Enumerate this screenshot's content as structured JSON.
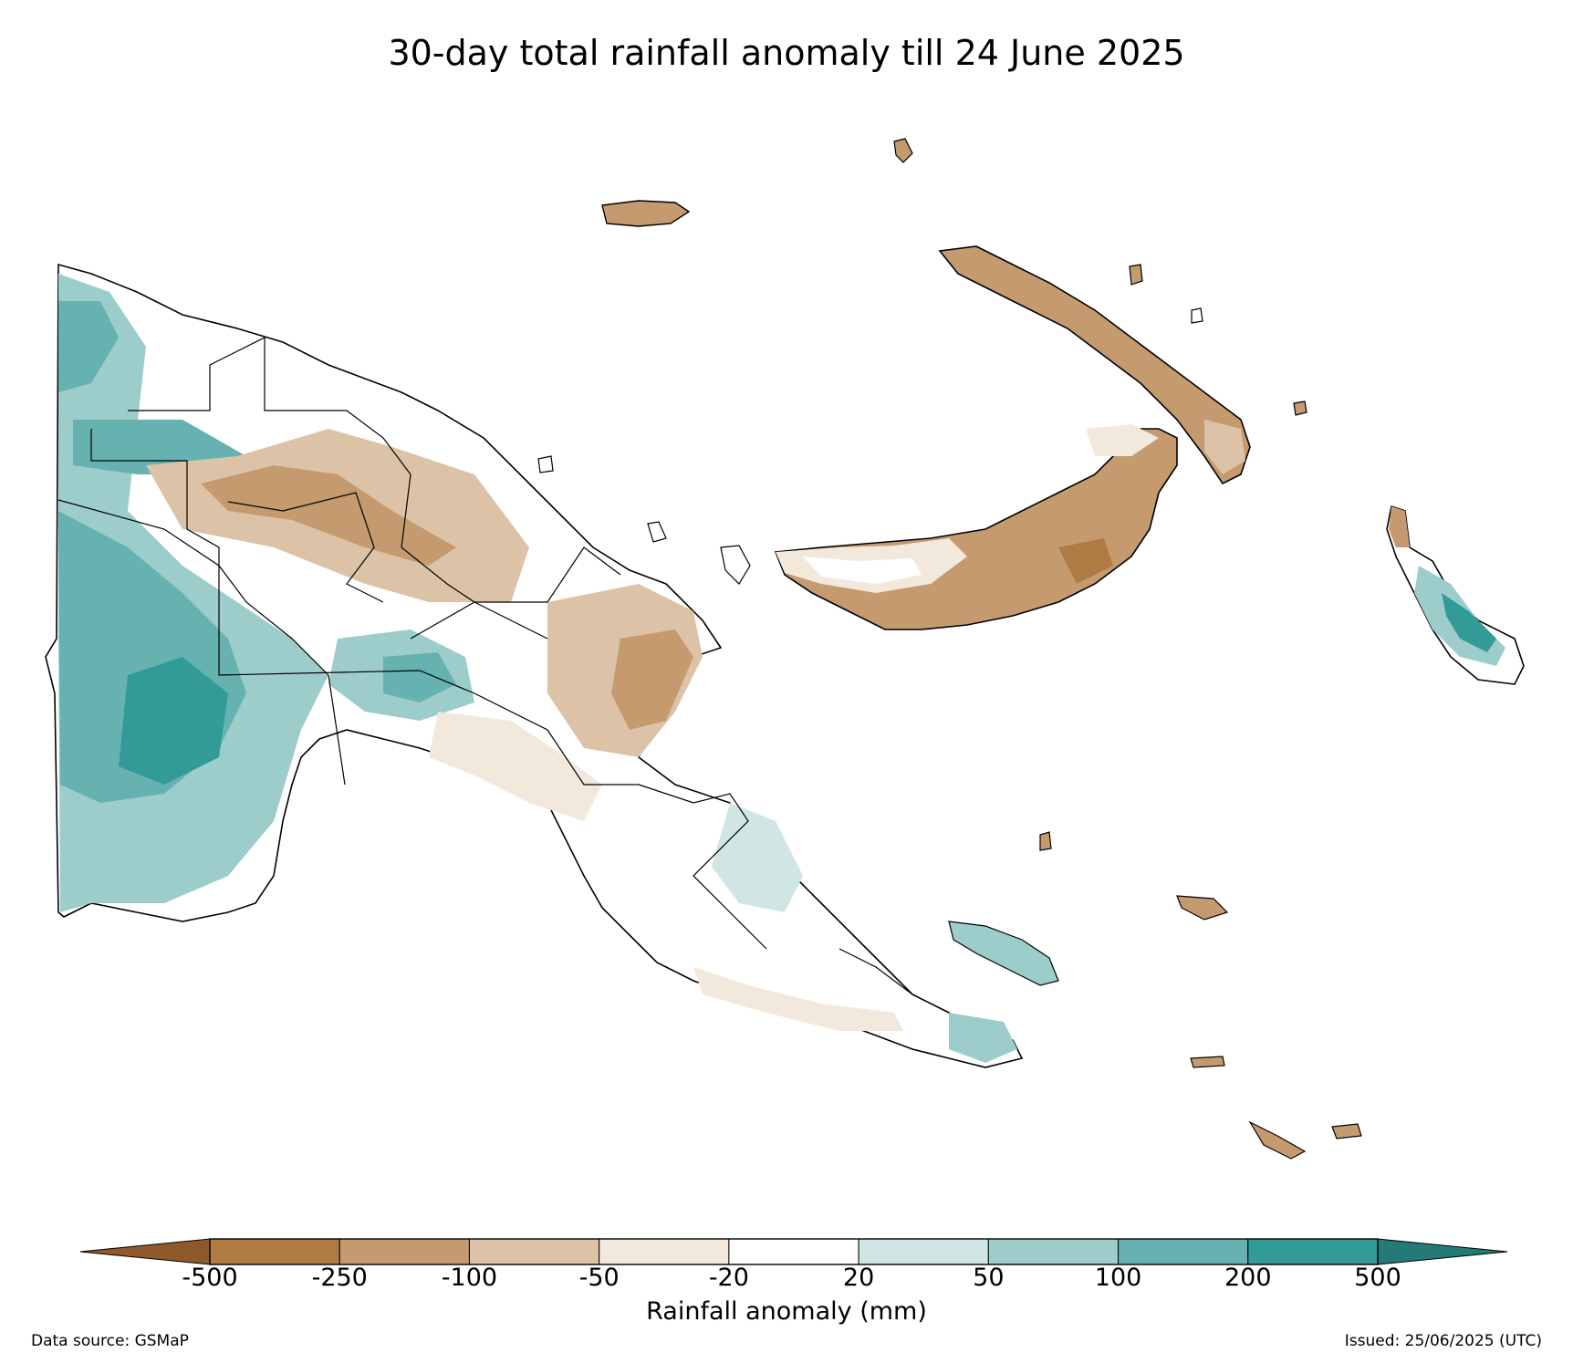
{
  "title": "30-day total rainfall anomaly till 24 June 2025",
  "colorbar": {
    "label": "Rainfall anomaly (mm)",
    "ticks": [
      "-500",
      "-250",
      "-100",
      "-50",
      "-20",
      "20",
      "50",
      "100",
      "200",
      "500"
    ],
    "colors": [
      "#8e5a2b",
      "#b07a43",
      "#c49a6e",
      "#dcc3a8",
      "#f2e8dc",
      "#ffffff",
      "#cfe6e5",
      "#9ccdcb",
      "#66b2b0",
      "#329b97",
      "#237a76"
    ]
  },
  "footer": {
    "source": "Data source: GSMaP",
    "issued": "Issued: 25/06/2025 (UTC)"
  },
  "map": {
    "region": "Papua New Guinea",
    "colors": {
      "land": "#ffffff",
      "dry_light": "#f2e8dc",
      "dry_mid": "#dcc3a8",
      "dry_strong": "#c49a6e",
      "dry_heavy": "#b07a43",
      "wet_light": "#cfe6e5",
      "wet_mid": "#9ccdcb",
      "wet_strong": "#66b2b0",
      "wet_heavy": "#329b97",
      "border": "#000000"
    }
  }
}
